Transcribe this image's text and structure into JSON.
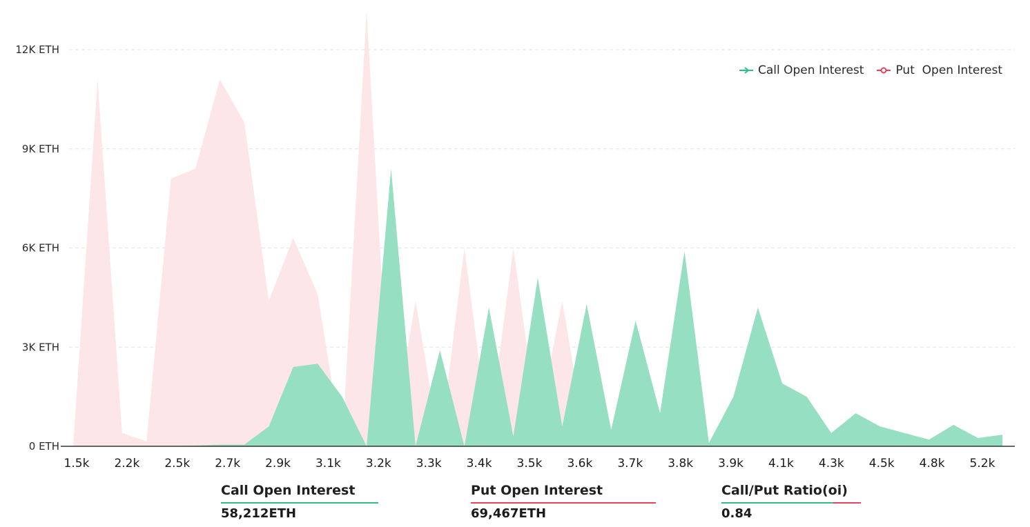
{
  "legend": {
    "call_label": "Call Open Interest",
    "put_label": "Put  Open Interest"
  },
  "colors": {
    "call_line": "#2bbf84",
    "call_fill": "#97dfc2",
    "put_line": "#e8435a",
    "put_fill": "#fce6e7",
    "grid": "#e3e3e3",
    "axis": "#333333"
  },
  "stats": {
    "call_label": "Call Open Interest",
    "call_value": "58,212",
    "call_unit": "ETH",
    "put_label": "Put Open Interest",
    "put_value": "69,467",
    "put_unit": "ETH",
    "ratio_label": "Call/Put Ratio(oi)",
    "ratio_value": "0.84"
  },
  "chart_data": {
    "type": "area",
    "xlabel": "",
    "ylabel": "",
    "ylim": [
      0,
      12000
    ],
    "y_ticks": [
      0,
      3000,
      6000,
      9000,
      12000
    ],
    "y_tick_labels": [
      "0 ETH",
      "3K ETH",
      "6K ETH",
      "9K ETH",
      "12K ETH"
    ],
    "x_tick_labels": [
      "1.5k",
      "2.2k",
      "2.5k",
      "2.7k",
      "2.9k",
      "3.1k",
      "3.2k",
      "3.3k",
      "3.4k",
      "3.5k",
      "3.6k",
      "3.7k",
      "3.8k",
      "3.9k",
      "4.1k",
      "4.3k",
      "4.5k",
      "4.8k",
      "5.2k"
    ],
    "grid": true,
    "legend_position": "top-right",
    "series": [
      {
        "name": "Call Open Interest",
        "values": [
          0,
          0,
          0,
          0,
          0,
          20,
          50,
          50,
          600,
          2400,
          2500,
          1500,
          0,
          8400,
          0,
          2900,
          0,
          4200,
          300,
          5100,
          600,
          4300,
          500,
          3800,
          1000,
          5900,
          100,
          1500,
          4200,
          1900,
          1500,
          400,
          1000,
          600,
          400,
          200,
          650,
          250,
          350
        ]
      },
      {
        "name": "Put  Open Interest",
        "values": [
          0,
          11100,
          400,
          150,
          8100,
          8400,
          11100,
          9800,
          4400,
          6300,
          4600,
          0,
          13200,
          0,
          4400,
          0,
          6000,
          300,
          6000,
          600,
          4400,
          0,
          0,
          0,
          0,
          0,
          0,
          0,
          0,
          0,
          0,
          0,
          0,
          0,
          0,
          0,
          0,
          0,
          0
        ]
      }
    ]
  }
}
